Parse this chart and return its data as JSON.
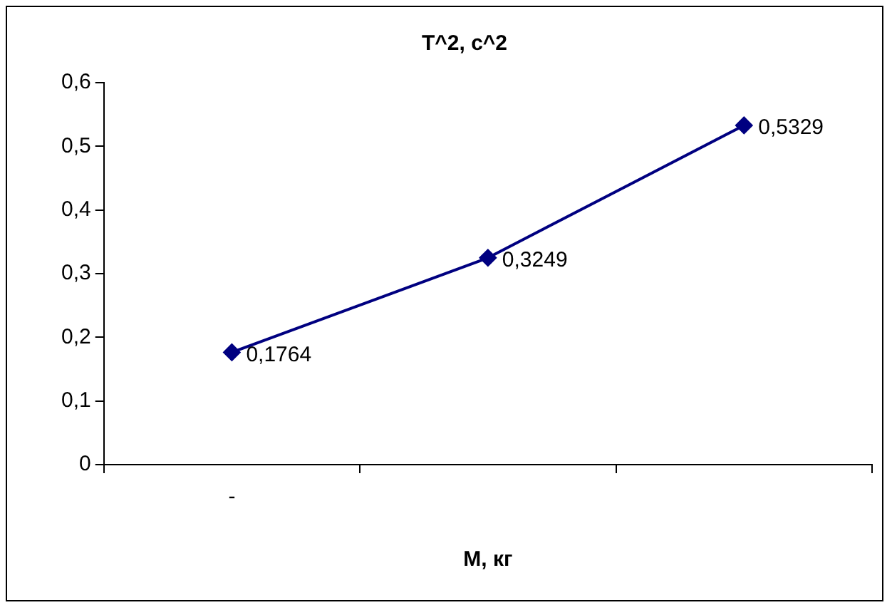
{
  "chart_data": {
    "type": "line",
    "title": "T^2, с^2",
    "xlabel": "М, кг",
    "categories": [
      "-",
      null,
      null
    ],
    "series": [
      {
        "color": "#000080",
        "values": [
          0.1764,
          0.3249,
          0.5329
        ],
        "value_labels": [
          "0,1764",
          "0,3249",
          "0,5329"
        ]
      }
    ],
    "ylim": [
      0,
      0.6
    ],
    "yticks": [
      0,
      {
        "value": 0.1,
        "label": "0,1"
      },
      {
        "value": 0.2,
        "label": "0,2"
      },
      {
        "value": 0.3,
        "label": "0,3"
      },
      {
        "value": 0.4,
        "label": "0,4"
      },
      {
        "value": 0.5,
        "label": "0,5"
      },
      {
        "value": 0.6,
        "label": "0,6"
      }
    ],
    "grid": false,
    "legend": false,
    "marker": "diamond",
    "line_style": "solid"
  }
}
